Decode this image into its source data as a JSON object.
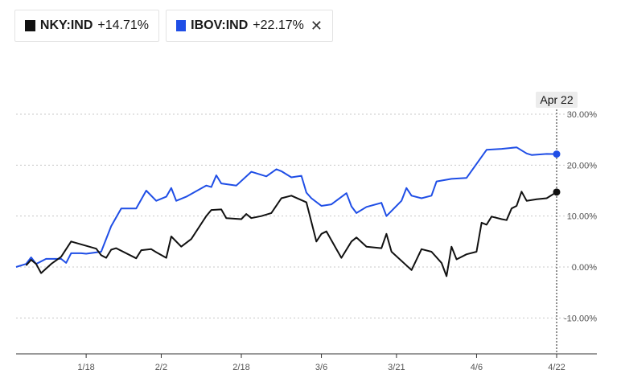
{
  "legend": [
    {
      "ticker": "NKY:IND",
      "change": "+14.71%",
      "color": "#111111",
      "removable": false
    },
    {
      "ticker": "IBOV:IND",
      "change": "+22.17%",
      "color": "#1f4ee6",
      "removable": true,
      "close_glyph": "✕"
    }
  ],
  "hover_date": "Apr 22",
  "colors": {
    "grid": "#c8c8c8",
    "axis": "#333333",
    "datebox_bg": "#ececec"
  },
  "chart_data": {
    "type": "line",
    "title": "",
    "xlabel": "",
    "ylabel": "",
    "x_ticks": [
      "1/18",
      "2/2",
      "2/18",
      "3/6",
      "3/21",
      "4/6",
      "4/22"
    ],
    "y_ticks": [
      "30.00%",
      "20.00%",
      "10.00%",
      "0.00%",
      "-10.00%"
    ],
    "ylim": [
      -17,
      30
    ],
    "x_range": [
      "2022-01-04",
      "2022-04-22"
    ],
    "grid": true,
    "series": [
      {
        "name": "IBOV:IND",
        "color": "#1f4ee6",
        "end_value": 22.17,
        "points": [
          [
            "2022-01-04",
            0
          ],
          [
            "2022-01-06",
            0.6
          ],
          [
            "2022-01-07",
            1.9
          ],
          [
            "2022-01-08",
            0.6
          ],
          [
            "2022-01-10",
            1.6
          ],
          [
            "2022-01-13",
            1.6
          ],
          [
            "2022-01-14",
            0.8
          ],
          [
            "2022-01-15",
            2.7
          ],
          [
            "2022-01-17",
            2.7
          ],
          [
            "2022-01-18",
            2.6
          ],
          [
            "2022-01-21",
            3.0
          ],
          [
            "2022-01-23",
            8.0
          ],
          [
            "2022-01-25",
            11.5
          ],
          [
            "2022-01-28",
            11.5
          ],
          [
            "2022-01-30",
            15.0
          ],
          [
            "2022-02-01",
            13.0
          ],
          [
            "2022-02-03",
            13.8
          ],
          [
            "2022-02-04",
            15.5
          ],
          [
            "2022-02-05",
            13.0
          ],
          [
            "2022-02-07",
            13.8
          ],
          [
            "2022-02-11",
            16.0
          ],
          [
            "2022-02-12",
            15.7
          ],
          [
            "2022-02-13",
            18.0
          ],
          [
            "2022-02-14",
            16.4
          ],
          [
            "2022-02-17",
            16.0
          ],
          [
            "2022-02-20",
            18.7
          ],
          [
            "2022-02-23",
            17.8
          ],
          [
            "2022-02-25",
            19.2
          ],
          [
            "2022-02-26",
            18.8
          ],
          [
            "2022-02-28",
            17.6
          ],
          [
            "2022-03-02",
            17.9
          ],
          [
            "2022-03-03",
            14.6
          ],
          [
            "2022-03-04",
            13.5
          ],
          [
            "2022-03-06",
            12.0
          ],
          [
            "2022-03-08",
            12.3
          ],
          [
            "2022-03-11",
            14.5
          ],
          [
            "2022-03-12",
            11.9
          ],
          [
            "2022-03-13",
            10.6
          ],
          [
            "2022-03-15",
            11.8
          ],
          [
            "2022-03-18",
            12.6
          ],
          [
            "2022-03-19",
            10.0
          ],
          [
            "2022-03-22",
            13.0
          ],
          [
            "2022-03-23",
            15.5
          ],
          [
            "2022-03-24",
            14.0
          ],
          [
            "2022-03-26",
            13.5
          ],
          [
            "2022-03-28",
            14.0
          ],
          [
            "2022-03-29",
            16.8
          ],
          [
            "2022-04-01",
            17.3
          ],
          [
            "2022-04-04",
            17.5
          ],
          [
            "2022-04-08",
            23.0
          ],
          [
            "2022-04-11",
            23.2
          ],
          [
            "2022-04-14",
            23.5
          ],
          [
            "2022-04-16",
            22.3
          ],
          [
            "2022-04-17",
            22.0
          ],
          [
            "2022-04-20",
            22.2
          ],
          [
            "2022-04-22",
            22.17
          ]
        ]
      },
      {
        "name": "NKY:IND",
        "color": "#111111",
        "end_value": 14.71,
        "points": [
          [
            "2022-01-06",
            0.3
          ],
          [
            "2022-01-07",
            1.4
          ],
          [
            "2022-01-08",
            0.6
          ],
          [
            "2022-01-09",
            -1.2
          ],
          [
            "2022-01-11",
            0.6
          ],
          [
            "2022-01-13",
            2.0
          ],
          [
            "2022-01-15",
            5.0
          ],
          [
            "2022-01-20",
            3.6
          ],
          [
            "2022-01-21",
            2.3
          ],
          [
            "2022-01-22",
            1.8
          ],
          [
            "2022-01-23",
            3.4
          ],
          [
            "2022-01-24",
            3.7
          ],
          [
            "2022-01-28",
            1.7
          ],
          [
            "2022-01-29",
            3.3
          ],
          [
            "2022-01-31",
            3.5
          ],
          [
            "2022-02-01",
            2.9
          ],
          [
            "2022-02-03",
            1.8
          ],
          [
            "2022-02-04",
            6.0
          ],
          [
            "2022-02-06",
            4.0
          ],
          [
            "2022-02-08",
            5.5
          ],
          [
            "2022-02-11",
            10.0
          ],
          [
            "2022-02-12",
            11.2
          ],
          [
            "2022-02-14",
            11.3
          ],
          [
            "2022-02-15",
            9.6
          ],
          [
            "2022-02-18",
            9.4
          ],
          [
            "2022-02-19",
            10.4
          ],
          [
            "2022-02-20",
            9.6
          ],
          [
            "2022-02-22",
            10.0
          ],
          [
            "2022-02-24",
            10.6
          ],
          [
            "2022-02-26",
            13.5
          ],
          [
            "2022-02-28",
            14.0
          ],
          [
            "2022-03-03",
            12.7
          ],
          [
            "2022-03-05",
            5.0
          ],
          [
            "2022-03-06",
            6.5
          ],
          [
            "2022-03-07",
            7.0
          ],
          [
            "2022-03-09",
            3.5
          ],
          [
            "2022-03-10",
            1.8
          ],
          [
            "2022-03-12",
            5.0
          ],
          [
            "2022-03-13",
            5.8
          ],
          [
            "2022-03-15",
            4.0
          ],
          [
            "2022-03-18",
            3.7
          ],
          [
            "2022-03-19",
            6.5
          ],
          [
            "2022-03-20",
            3.0
          ],
          [
            "2022-03-24",
            -0.6
          ],
          [
            "2022-03-26",
            3.5
          ],
          [
            "2022-03-28",
            3.0
          ],
          [
            "2022-03-30",
            0.8
          ],
          [
            "2022-03-31",
            -1.8
          ],
          [
            "2022-04-01",
            4.0
          ],
          [
            "2022-04-02",
            1.5
          ],
          [
            "2022-04-04",
            2.5
          ],
          [
            "2022-04-06",
            3.0
          ],
          [
            "2022-04-07",
            8.7
          ],
          [
            "2022-04-08",
            8.3
          ],
          [
            "2022-04-09",
            9.9
          ],
          [
            "2022-04-11",
            9.4
          ],
          [
            "2022-04-12",
            9.2
          ],
          [
            "2022-04-13",
            11.5
          ],
          [
            "2022-04-14",
            12.0
          ],
          [
            "2022-04-15",
            14.8
          ],
          [
            "2022-04-16",
            13.0
          ],
          [
            "2022-04-18",
            13.3
          ],
          [
            "2022-04-20",
            13.5
          ],
          [
            "2022-04-22",
            14.71
          ]
        ]
      }
    ]
  }
}
